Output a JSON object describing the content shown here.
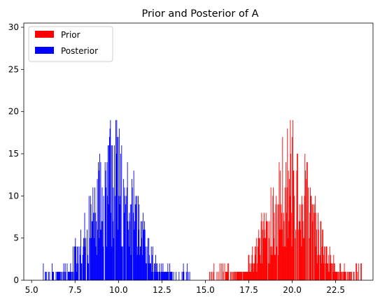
{
  "chart_data": {
    "type": "histogram",
    "title": "Prior and Posterior of A",
    "xlabel": "",
    "ylabel": "",
    "xlim": [
      4.55,
      24.65
    ],
    "ylim": [
      0,
      30.5
    ],
    "xticks": [
      5.0,
      7.5,
      10.0,
      12.5,
      15.0,
      17.5,
      20.0,
      22.5
    ],
    "xtick_labels": [
      "5.0",
      "7.5",
      "10.0",
      "12.5",
      "15.0",
      "17.5",
      "20.0",
      "22.5"
    ],
    "yticks": [
      0,
      5,
      10,
      15,
      20,
      25,
      30
    ],
    "ytick_labels": [
      "0",
      "5",
      "10",
      "15",
      "20",
      "25",
      "30"
    ],
    "grid": false,
    "legend_position": "top-left",
    "series": [
      {
        "name": "Prior",
        "color": "#ff0000",
        "approx_center": 19.9,
        "approx_spread": 1.25,
        "range": [
          15.2,
          24.0
        ],
        "peak_count": 20,
        "bin_width": 0.028
      },
      {
        "name": "Posterior",
        "color": "#0000ff",
        "approx_center": 9.7,
        "approx_spread": 1.3,
        "range": [
          5.6,
          14.1
        ],
        "peak_count": 20,
        "bin_width": 0.028
      }
    ]
  }
}
